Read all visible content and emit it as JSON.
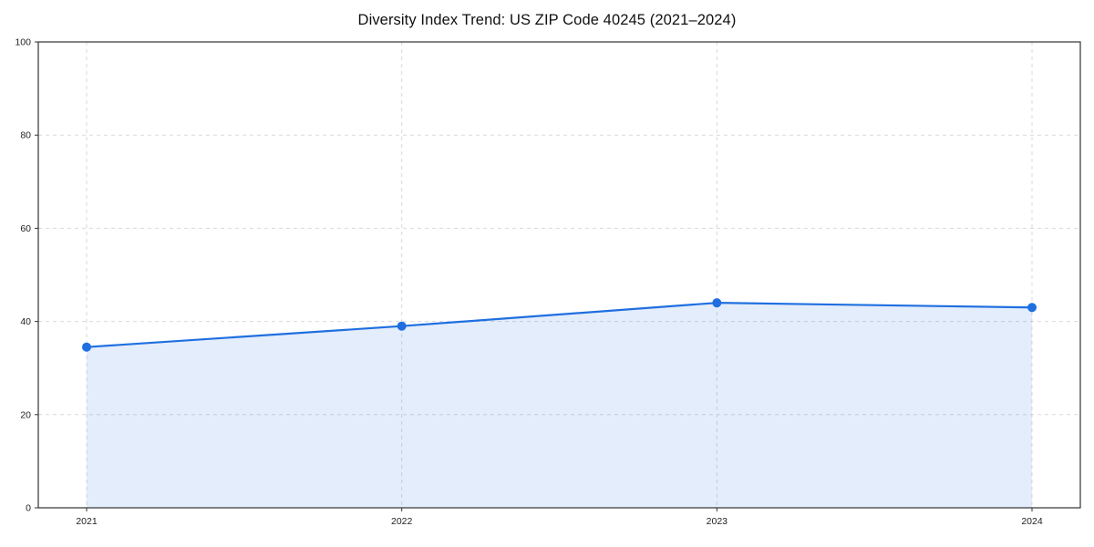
{
  "chart_data": {
    "type": "area",
    "title": "Diversity Index Trend: US ZIP Code 40245 (2021–2024)",
    "categories": [
      "2021",
      "2022",
      "2023",
      "2024"
    ],
    "series": [
      {
        "name": "Diversity Index",
        "values": [
          34.5,
          39,
          44,
          43
        ]
      }
    ],
    "xlabel": "",
    "ylabel": "",
    "ylim": [
      0,
      100
    ],
    "yticks": [
      0,
      20,
      40,
      60,
      80,
      100
    ],
    "grid": "dashed horizontal and vertical",
    "legend": "none",
    "line_color": "#1f6fe0",
    "marker_color": "#1f6fe0",
    "fill_color": "#1f6fe0",
    "fill_opacity": 0.12,
    "grid_color": "#d9d9d9",
    "spine_color": "#333333"
  }
}
